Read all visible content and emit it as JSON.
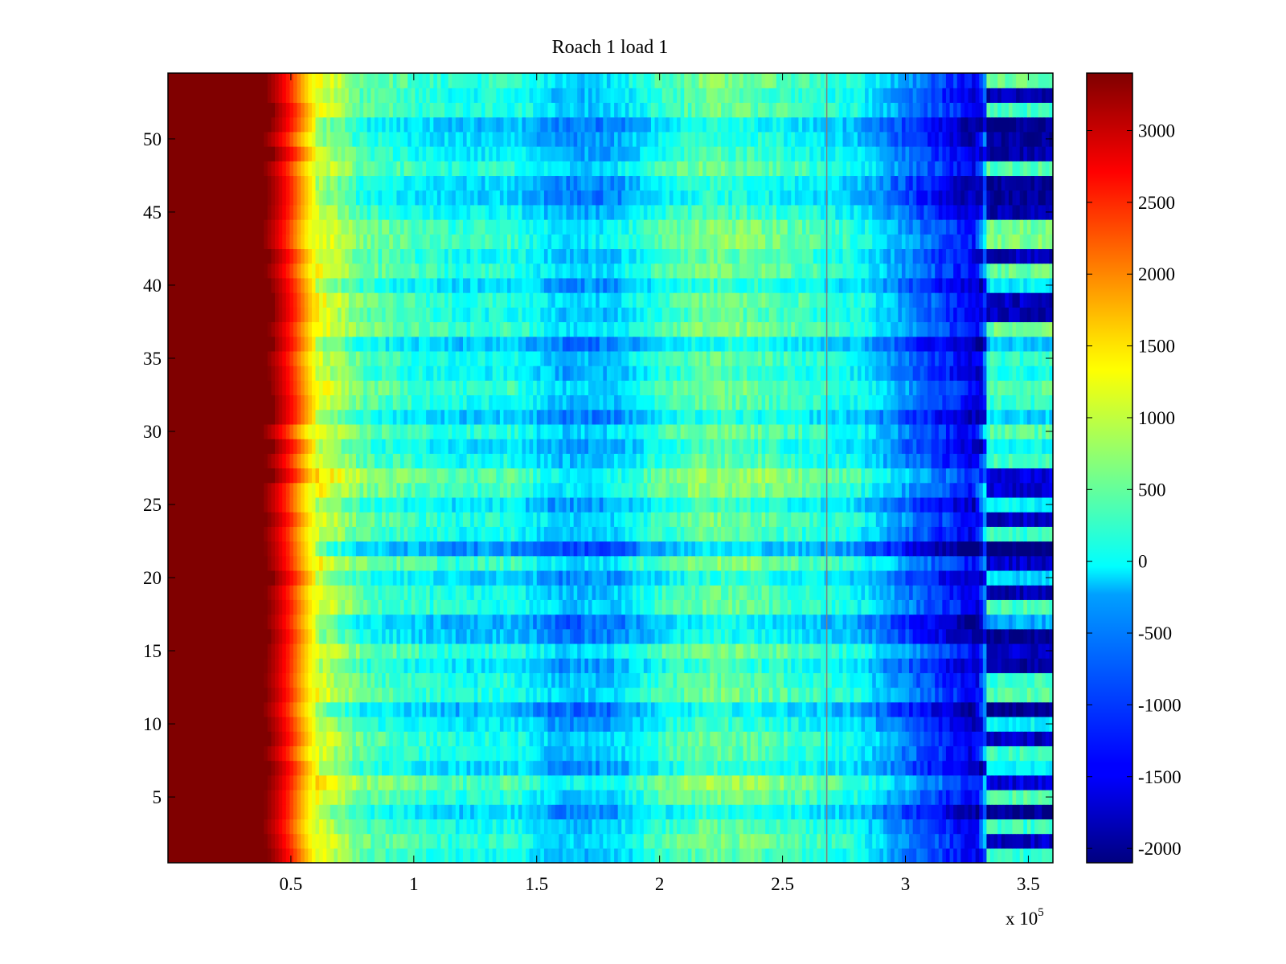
{
  "chart_data": {
    "type": "heatmap",
    "title": "Roach 1 load 1",
    "xlabel": "",
    "ylabel": "",
    "x_multiplier_label": "x 10",
    "x_multiplier_exponent": "5",
    "xlim": [
      0,
      3.6
    ],
    "ylim": [
      0.5,
      54.5
    ],
    "x_ticks": [
      0.5,
      1,
      1.5,
      2,
      2.5,
      3,
      3.5
    ],
    "x_tick_labels": [
      "0.5",
      "1",
      "1.5",
      "2",
      "2.5",
      "3",
      "3.5"
    ],
    "y_ticks": [
      5,
      10,
      15,
      20,
      25,
      30,
      35,
      40,
      45,
      50
    ],
    "y_tick_labels": [
      "5",
      "10",
      "15",
      "20",
      "25",
      "30",
      "35",
      "40",
      "45",
      "50"
    ],
    "colorbar": {
      "clim": [
        -2100,
        3400
      ],
      "colormap": "jet",
      "ticks": [
        3000,
        2500,
        2000,
        1500,
        1000,
        500,
        0,
        -500,
        -1000,
        -1500,
        -2000
      ],
      "tick_labels": [
        "3000",
        "2500",
        "2000",
        "1500",
        "1000",
        "500",
        "0",
        "-500",
        "-1000",
        "-1500",
        "-2000"
      ]
    },
    "rows": 54,
    "x_columns": [
      0.02,
      0.4,
      0.45,
      0.5,
      0.55,
      0.6,
      0.8,
      1.0,
      1.2,
      1.4,
      1.6,
      1.8,
      2.0,
      2.2,
      2.4,
      2.6,
      2.8,
      3.0,
      3.1,
      3.2,
      3.3,
      3.35,
      3.45,
      3.55
    ],
    "profile_values": [
      3400,
      3400,
      3000,
      2500,
      1800,
      1200,
      400,
      200,
      0,
      100,
      -400,
      -350,
      200,
      500,
      400,
      200,
      0,
      -700,
      -1000,
      -1300,
      -1600,
      200,
      200,
      200
    ],
    "row_offsets": [
      0,
      150,
      0,
      -300,
      100,
      350,
      -250,
      0,
      50,
      -200,
      -450,
      100,
      0,
      -200,
      150,
      -400,
      -500,
      50,
      0,
      -300,
      200,
      -650,
      0,
      100,
      -200,
      250,
      350,
      0,
      -200,
      100,
      -350,
      0,
      150,
      -100,
      0,
      -400,
      200,
      0,
      100,
      -250,
      150,
      0,
      250,
      200,
      -100,
      -350,
      -300,
      100,
      -150,
      -250,
      -400,
      50,
      0,
      150
    ],
    "cold_end_rows": [
      0,
      1,
      0,
      1,
      0,
      1,
      0,
      0,
      1,
      0,
      1,
      0,
      0,
      1,
      1,
      1,
      0,
      0,
      1,
      0,
      1,
      1,
      0,
      1,
      0,
      1,
      1,
      0,
      0,
      0,
      0,
      0,
      0,
      0,
      0,
      0,
      0,
      1,
      1,
      0,
      0,
      1,
      0,
      0,
      1,
      1,
      1,
      0,
      1,
      1,
      1,
      0,
      1,
      0
    ]
  }
}
